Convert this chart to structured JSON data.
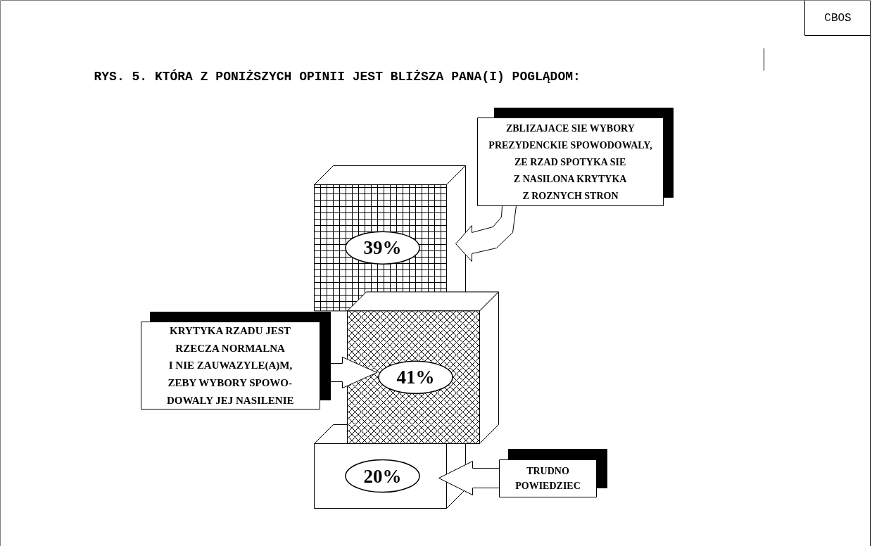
{
  "chart_data": {
    "type": "other",
    "title": "RYS. 5. KTÓRA Z PONIŻSZYCH OPINII JEST BLIŻSZA PANA(I) POGLĄDOM:",
    "categories": [
      "ZBLIZAJACE SIE WYBORY\nPREZYDENCKIE SPOWODOWALY,\nZE RZAD SPOTYKA SIE\nZ NASILONA KRYTYKA\nZ ROZNYCH STRON",
      "KRYTYKA RZADU JEST\nRZECZA NORMALNA\nI NIE ZAUWAZYLE(A)M,\nZEBY WYBORY SPOWO-\nDOWALY JEJ NASILENIE",
      "TRUDNO\nPOWIEDZIEC"
    ],
    "values": [
      39,
      41,
      20
    ],
    "value_labels": [
      "39%",
      "41%",
      "20%"
    ],
    "annotations": [
      "CBOS"
    ]
  }
}
